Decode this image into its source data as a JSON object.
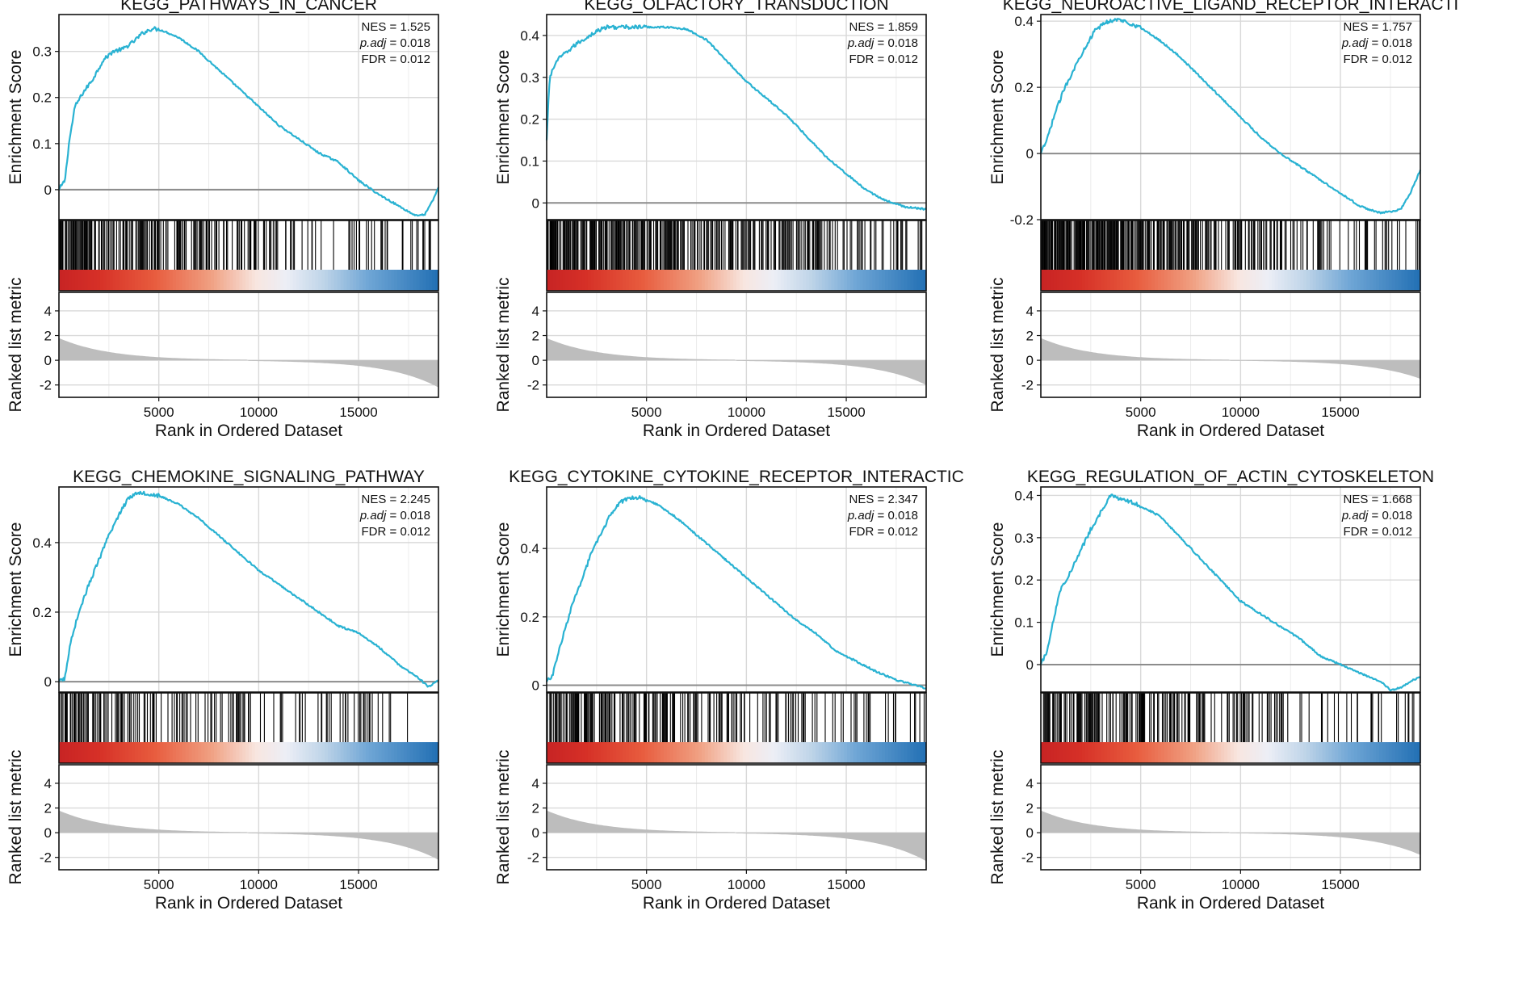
{
  "figure": {
    "x_label": "Rank in Ordered Dataset",
    "es_label": "Enrichment Score",
    "metric_label": "Ranked list metric",
    "colors": {
      "curve": "#29b2d2",
      "zero_line": "#8c8c8c",
      "grid": "#d9d9d9",
      "metric_fill": "#bdbdbd",
      "hits": "#000000"
    }
  },
  "chart_data": [
    {
      "type": "line",
      "title": "KEGG_PATHWAYS_IN_CANCER",
      "stats": {
        "nes_label": "NES",
        "nes": "1.525",
        "padj_label": "p.adj",
        "padj": "0.018",
        "fdr_label": "FDR",
        "fdr": "0.012"
      },
      "x_range": [
        0,
        19000
      ],
      "x_ticks": [
        5000,
        10000,
        15000
      ],
      "es_ylim": [
        -0.065,
        0.38
      ],
      "es_ticks": [
        0.0,
        0.1,
        0.2,
        0.3
      ],
      "es_curve": [
        [
          0,
          0
        ],
        [
          300,
          0.02
        ],
        [
          500,
          0.1
        ],
        [
          800,
          0.18
        ],
        [
          1200,
          0.21
        ],
        [
          1700,
          0.24
        ],
        [
          2200,
          0.28
        ],
        [
          2700,
          0.3
        ],
        [
          3200,
          0.305
        ],
        [
          3700,
          0.32
        ],
        [
          4200,
          0.34
        ],
        [
          4700,
          0.35
        ],
        [
          5200,
          0.345
        ],
        [
          6000,
          0.33
        ],
        [
          7000,
          0.3
        ],
        [
          8000,
          0.26
        ],
        [
          9000,
          0.22
        ],
        [
          10000,
          0.18
        ],
        [
          11000,
          0.14
        ],
        [
          12000,
          0.11
        ],
        [
          13000,
          0.08
        ],
        [
          14000,
          0.06
        ],
        [
          15000,
          0.02
        ],
        [
          16000,
          -0.01
        ],
        [
          17000,
          -0.035
        ],
        [
          17800,
          -0.055
        ],
        [
          18300,
          -0.055
        ],
        [
          18700,
          -0.025
        ],
        [
          19000,
          0.005
        ]
      ],
      "hit_density": 0.62,
      "hit_bias": 1.6,
      "metric_ylim": [
        -3,
        5.5
      ],
      "metric_ticks": [
        -2,
        0,
        2,
        4
      ],
      "metric_start": 1.8,
      "metric_end": -2.2
    },
    {
      "type": "line",
      "title": "KEGG_OLFACTORY_TRANSDUCTION",
      "stats": {
        "nes_label": "NES",
        "nes": "1.859",
        "padj_label": "p.adj",
        "padj": "0.018",
        "fdr_label": "FDR",
        "fdr": "0.012"
      },
      "x_range": [
        0,
        19000
      ],
      "x_ticks": [
        5000,
        10000,
        15000
      ],
      "es_ylim": [
        -0.04,
        0.45
      ],
      "es_ticks": [
        0.0,
        0.1,
        0.2,
        0.3,
        0.4
      ],
      "es_curve": [
        [
          0,
          0.15
        ],
        [
          150,
          0.3
        ],
        [
          500,
          0.34
        ],
        [
          1000,
          0.36
        ],
        [
          1500,
          0.38
        ],
        [
          2000,
          0.395
        ],
        [
          2500,
          0.41
        ],
        [
          3000,
          0.42
        ],
        [
          4000,
          0.42
        ],
        [
          5000,
          0.42
        ],
        [
          6000,
          0.42
        ],
        [
          7000,
          0.415
        ],
        [
          8000,
          0.39
        ],
        [
          9000,
          0.34
        ],
        [
          10000,
          0.29
        ],
        [
          11000,
          0.25
        ],
        [
          12000,
          0.21
        ],
        [
          13000,
          0.16
        ],
        [
          14000,
          0.11
        ],
        [
          15000,
          0.07
        ],
        [
          16000,
          0.03
        ],
        [
          17000,
          0.005
        ],
        [
          18000,
          -0.01
        ],
        [
          19000,
          -0.015
        ]
      ],
      "hit_density": 0.72,
      "hit_bias": 0.8,
      "metric_ylim": [
        -3,
        5.5
      ],
      "metric_ticks": [
        -2,
        0,
        2,
        4
      ],
      "metric_start": 1.8,
      "metric_end": -2.0
    },
    {
      "type": "line",
      "title": "KEGG_NEUROACTIVE_LIGAND_RECEPTOR_INTERACTI",
      "stats": {
        "nes_label": "NES",
        "nes": "1.757",
        "padj_label": "p.adj",
        "padj": "0.018",
        "fdr_label": "FDR",
        "fdr": "0.012"
      },
      "x_range": [
        0,
        19000
      ],
      "x_ticks": [
        5000,
        10000,
        15000
      ],
      "es_ylim": [
        -0.2,
        0.42
      ],
      "es_ticks": [
        -0.2,
        0.0,
        0.2,
        0.4
      ],
      "es_curve": [
        [
          0,
          0
        ],
        [
          300,
          0.04
        ],
        [
          700,
          0.12
        ],
        [
          1200,
          0.2
        ],
        [
          1700,
          0.26
        ],
        [
          2200,
          0.32
        ],
        [
          2700,
          0.37
        ],
        [
          3200,
          0.395
        ],
        [
          3700,
          0.405
        ],
        [
          4200,
          0.4
        ],
        [
          5000,
          0.38
        ],
        [
          6000,
          0.34
        ],
        [
          7000,
          0.29
        ],
        [
          8000,
          0.23
        ],
        [
          9000,
          0.17
        ],
        [
          10000,
          0.11
        ],
        [
          11000,
          0.05
        ],
        [
          12000,
          0.0
        ],
        [
          13000,
          -0.04
        ],
        [
          14000,
          -0.08
        ],
        [
          15000,
          -0.12
        ],
        [
          16000,
          -0.16
        ],
        [
          17000,
          -0.18
        ],
        [
          17500,
          -0.175
        ],
        [
          18000,
          -0.17
        ],
        [
          18500,
          -0.12
        ],
        [
          19000,
          -0.05
        ]
      ],
      "hit_density": 0.82,
      "hit_bias": 1.2,
      "metric_ylim": [
        -3,
        5.5
      ],
      "metric_ticks": [
        -2,
        0,
        2,
        4
      ],
      "metric_start": 1.8,
      "metric_end": -1.5
    },
    {
      "type": "line",
      "title": "KEGG_CHEMOKINE_SIGNALING_PATHWAY",
      "stats": {
        "nes_label": "NES",
        "nes": "2.245",
        "padj_label": "p.adj",
        "padj": "0.018",
        "fdr_label": "FDR",
        "fdr": "0.012"
      },
      "x_range": [
        0,
        19000
      ],
      "x_ticks": [
        5000,
        10000,
        15000
      ],
      "es_ylim": [
        -0.03,
        0.56
      ],
      "es_ticks": [
        0.0,
        0.2,
        0.4
      ],
      "es_curve": [
        [
          0,
          0
        ],
        [
          300,
          0.01
        ],
        [
          600,
          0.12
        ],
        [
          1000,
          0.2
        ],
        [
          1500,
          0.28
        ],
        [
          2000,
          0.35
        ],
        [
          2500,
          0.42
        ],
        [
          3000,
          0.48
        ],
        [
          3500,
          0.53
        ],
        [
          4000,
          0.545
        ],
        [
          4500,
          0.54
        ],
        [
          5000,
          0.535
        ],
        [
          6000,
          0.51
        ],
        [
          7000,
          0.47
        ],
        [
          8000,
          0.42
        ],
        [
          9000,
          0.37
        ],
        [
          10000,
          0.32
        ],
        [
          11000,
          0.28
        ],
        [
          12000,
          0.24
        ],
        [
          13000,
          0.2
        ],
        [
          14000,
          0.16
        ],
        [
          15000,
          0.14
        ],
        [
          16000,
          0.1
        ],
        [
          17000,
          0.05
        ],
        [
          18000,
          0.01
        ],
        [
          18500,
          -0.015
        ],
        [
          19000,
          0.005
        ]
      ],
      "hit_density": 0.45,
      "hit_bias": 1.8,
      "metric_ylim": [
        -3,
        5.5
      ],
      "metric_ticks": [
        -2,
        0,
        2,
        4
      ],
      "metric_start": 1.8,
      "metric_end": -2.2
    },
    {
      "type": "line",
      "title": "KEGG_CYTOKINE_CYTOKINE_RECEPTOR_INTERACTIC",
      "stats": {
        "nes_label": "NES",
        "nes": "2.347",
        "padj_label": "p.adj",
        "padj": "0.018",
        "fdr_label": "FDR",
        "fdr": "0.012"
      },
      "x_range": [
        0,
        19000
      ],
      "x_ticks": [
        5000,
        10000,
        15000
      ],
      "es_ylim": [
        -0.02,
        0.58
      ],
      "es_ticks": [
        0.0,
        0.2,
        0.4
      ],
      "es_curve": [
        [
          0,
          0.01
        ],
        [
          300,
          0.03
        ],
        [
          700,
          0.12
        ],
        [
          1200,
          0.22
        ],
        [
          1700,
          0.3
        ],
        [
          2200,
          0.38
        ],
        [
          2700,
          0.44
        ],
        [
          3200,
          0.5
        ],
        [
          3700,
          0.535
        ],
        [
          4200,
          0.55
        ],
        [
          4700,
          0.55
        ],
        [
          5500,
          0.53
        ],
        [
          6500,
          0.49
        ],
        [
          7500,
          0.44
        ],
        [
          8500,
          0.39
        ],
        [
          9500,
          0.34
        ],
        [
          10500,
          0.29
        ],
        [
          11500,
          0.24
        ],
        [
          12500,
          0.19
        ],
        [
          13500,
          0.15
        ],
        [
          14500,
          0.1
        ],
        [
          15500,
          0.07
        ],
        [
          16500,
          0.04
        ],
        [
          17500,
          0.015
        ],
        [
          18500,
          0.0
        ],
        [
          19000,
          -0.01
        ]
      ],
      "hit_density": 0.6,
      "hit_bias": 1.6,
      "metric_ylim": [
        -3,
        5.5
      ],
      "metric_ticks": [
        -2,
        0,
        2,
        4
      ],
      "metric_start": 1.8,
      "metric_end": -2.3
    },
    {
      "type": "line",
      "title": "KEGG_REGULATION_OF_ACTIN_CYTOSKELETON",
      "stats": {
        "nes_label": "NES",
        "nes": "1.668",
        "padj_label": "p.adj",
        "padj": "0.018",
        "fdr_label": "FDR",
        "fdr": "0.012"
      },
      "x_range": [
        0,
        19000
      ],
      "x_ticks": [
        5000,
        10000,
        15000
      ],
      "es_ylim": [
        -0.065,
        0.42
      ],
      "es_ticks": [
        0.0,
        0.1,
        0.2,
        0.3,
        0.4
      ],
      "es_curve": [
        [
          0,
          0
        ],
        [
          300,
          0.03
        ],
        [
          600,
          0.1
        ],
        [
          1000,
          0.18
        ],
        [
          1500,
          0.22
        ],
        [
          2000,
          0.27
        ],
        [
          2500,
          0.32
        ],
        [
          3000,
          0.36
        ],
        [
          3500,
          0.4
        ],
        [
          4000,
          0.39
        ],
        [
          4500,
          0.385
        ],
        [
          5000,
          0.375
        ],
        [
          6000,
          0.35
        ],
        [
          7000,
          0.3
        ],
        [
          8000,
          0.25
        ],
        [
          9000,
          0.2
        ],
        [
          10000,
          0.15
        ],
        [
          11000,
          0.12
        ],
        [
          12000,
          0.09
        ],
        [
          13000,
          0.06
        ],
        [
          14000,
          0.02
        ],
        [
          15000,
          0.0
        ],
        [
          16000,
          -0.02
        ],
        [
          17000,
          -0.04
        ],
        [
          17500,
          -0.06
        ],
        [
          18000,
          -0.055
        ],
        [
          18500,
          -0.04
        ],
        [
          19000,
          -0.03
        ]
      ],
      "hit_density": 0.55,
      "hit_bias": 1.3,
      "metric_ylim": [
        -3,
        5.5
      ],
      "metric_ticks": [
        -2,
        0,
        2,
        4
      ],
      "metric_start": 1.8,
      "metric_end": -1.8
    }
  ]
}
